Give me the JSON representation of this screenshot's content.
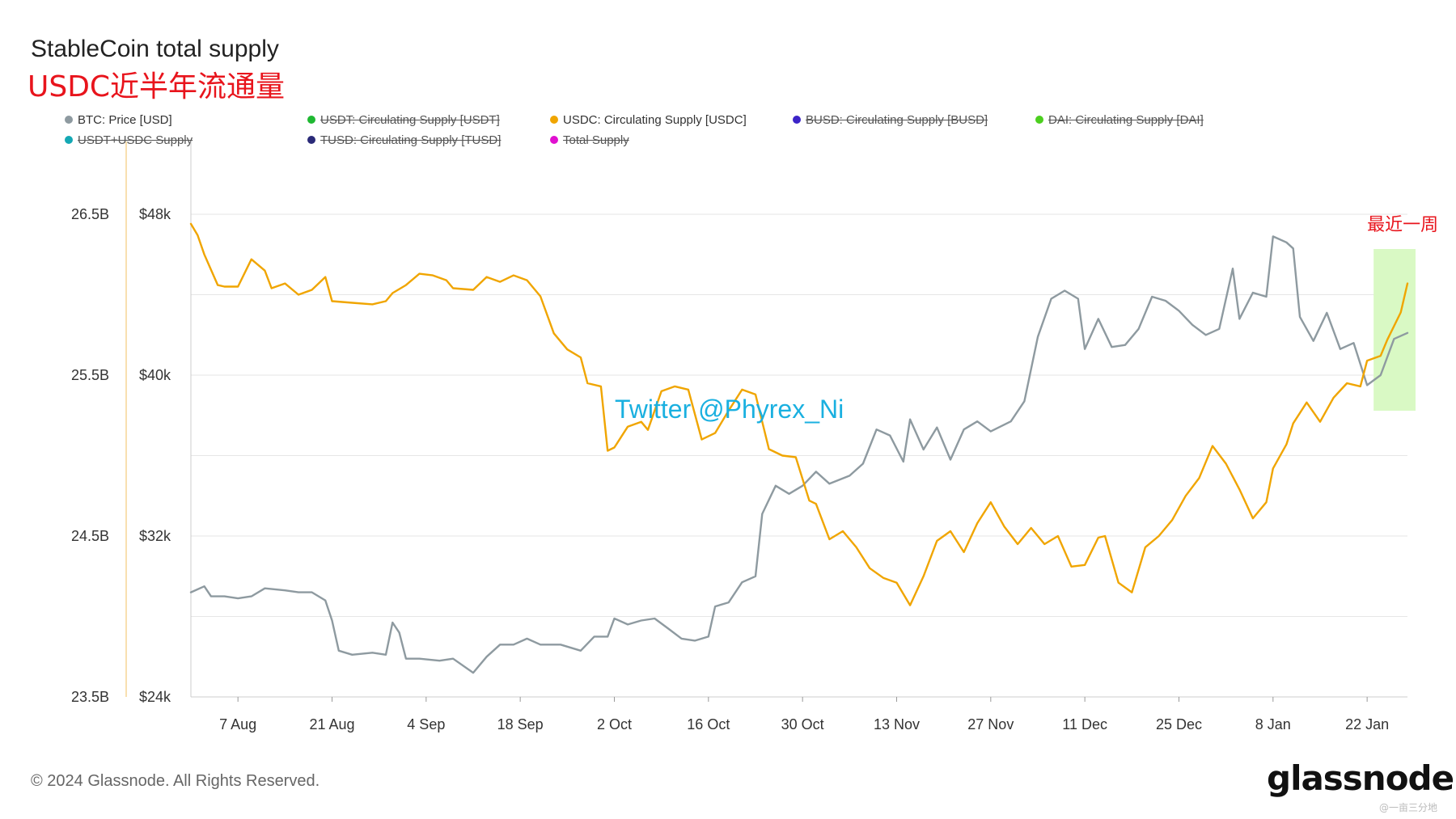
{
  "header": {
    "title": "StableCoin total supply",
    "subtitle": "USDC近半年流通量"
  },
  "legend": [
    {
      "label": "BTC: Price [USD]",
      "color": "#8e9aa0",
      "enabled": true
    },
    {
      "label": "USDT: Circulating Supply [USDT]",
      "color": "#1fb832",
      "enabled": false
    },
    {
      "label": "USDC: Circulating Supply [USDC]",
      "color": "#f0a500",
      "enabled": true
    },
    {
      "label": "BUSD: Circulating Supply [BUSD]",
      "color": "#3c24c8",
      "enabled": false
    },
    {
      "label": "DAI: Circulating Supply [DAI]",
      "color": "#4ccf1f",
      "enabled": false
    },
    {
      "label": "USDT+USDC Supply",
      "color": "#14a8b4",
      "enabled": false
    },
    {
      "label": "TUSD: Circulating Supply [TUSD]",
      "color": "#2a2a78",
      "enabled": false
    },
    {
      "label": "Total Supply",
      "color": "#e010d0",
      "enabled": false
    }
  ],
  "annotations": {
    "watermark": "Twitter @Phyrex_Ni",
    "highlight_label": "最近一周",
    "highlight_color": "#d9f9c4"
  },
  "footer": {
    "copyright": "© 2024 Glassnode. All Rights Reserved.",
    "logo": "glassnode",
    "corner_mark": "@一亩三分地"
  },
  "chart_data": {
    "type": "line",
    "x_ticks": [
      "7 Aug",
      "21 Aug",
      "4 Sep",
      "18 Sep",
      "2 Oct",
      "16 Oct",
      "30 Oct",
      "13 Nov",
      "27 Nov",
      "11 Dec",
      "25 Dec",
      "8 Jan",
      "22 Jan"
    ],
    "x_range": [
      "2023-07-31",
      "2024-01-28"
    ],
    "y_left": {
      "ticks": [
        "26.5B",
        "25.5B",
        "24.5B",
        "23.5B"
      ],
      "range": [
        23.5,
        26.5
      ],
      "unit": "B"
    },
    "y_right": {
      "ticks": [
        "$48k",
        "$40k",
        "$32k",
        "$24k"
      ],
      "range": [
        24,
        48
      ],
      "unit": "k"
    },
    "series": [
      {
        "name": "BTC: Price [USD]",
        "axis": "price",
        "color": "#8e9aa0",
        "points": [
          [
            "2023-07-31",
            29.2
          ],
          [
            "2023-08-02",
            29.5
          ],
          [
            "2023-08-03",
            29.0
          ],
          [
            "2023-08-05",
            29.0
          ],
          [
            "2023-08-07",
            28.9
          ],
          [
            "2023-08-09",
            29.0
          ],
          [
            "2023-08-11",
            29.4
          ],
          [
            "2023-08-14",
            29.3
          ],
          [
            "2023-08-16",
            29.2
          ],
          [
            "2023-08-18",
            29.2
          ],
          [
            "2023-08-20",
            28.8
          ],
          [
            "2023-08-21",
            27.8
          ],
          [
            "2023-08-22",
            26.3
          ],
          [
            "2023-08-24",
            26.1
          ],
          [
            "2023-08-27",
            26.2
          ],
          [
            "2023-08-29",
            26.1
          ],
          [
            "2023-08-30",
            27.7
          ],
          [
            "2023-08-31",
            27.2
          ],
          [
            "2023-09-01",
            25.9
          ],
          [
            "2023-09-03",
            25.9
          ],
          [
            "2023-09-06",
            25.8
          ],
          [
            "2023-09-08",
            25.9
          ],
          [
            "2023-09-11",
            25.2
          ],
          [
            "2023-09-13",
            26.0
          ],
          [
            "2023-09-15",
            26.6
          ],
          [
            "2023-09-17",
            26.6
          ],
          [
            "2023-09-19",
            26.9
          ],
          [
            "2023-09-21",
            26.6
          ],
          [
            "2023-09-24",
            26.6
          ],
          [
            "2023-09-27",
            26.3
          ],
          [
            "2023-09-29",
            27.0
          ],
          [
            "2023-10-01",
            27.0
          ],
          [
            "2023-10-02",
            27.9
          ],
          [
            "2023-10-04",
            27.6
          ],
          [
            "2023-10-06",
            27.8
          ],
          [
            "2023-10-08",
            27.9
          ],
          [
            "2023-10-10",
            27.4
          ],
          [
            "2023-10-12",
            26.9
          ],
          [
            "2023-10-14",
            26.8
          ],
          [
            "2023-10-16",
            27.0
          ],
          [
            "2023-10-17",
            28.5
          ],
          [
            "2023-10-19",
            28.7
          ],
          [
            "2023-10-21",
            29.7
          ],
          [
            "2023-10-23",
            30.0
          ],
          [
            "2023-10-24",
            33.1
          ],
          [
            "2023-10-26",
            34.5
          ],
          [
            "2023-10-28",
            34.1
          ],
          [
            "2023-10-30",
            34.5
          ],
          [
            "2023-11-01",
            35.2
          ],
          [
            "2023-11-03",
            34.6
          ],
          [
            "2023-11-06",
            35.0
          ],
          [
            "2023-11-08",
            35.6
          ],
          [
            "2023-11-10",
            37.3
          ],
          [
            "2023-11-12",
            37.0
          ],
          [
            "2023-11-14",
            35.7
          ],
          [
            "2023-11-15",
            37.8
          ],
          [
            "2023-11-17",
            36.3
          ],
          [
            "2023-11-19",
            37.4
          ],
          [
            "2023-11-21",
            35.8
          ],
          [
            "2023-11-23",
            37.3
          ],
          [
            "2023-11-25",
            37.7
          ],
          [
            "2023-11-27",
            37.2
          ],
          [
            "2023-11-30",
            37.7
          ],
          [
            "2023-12-02",
            38.7
          ],
          [
            "2023-12-04",
            41.9
          ],
          [
            "2023-12-06",
            43.8
          ],
          [
            "2023-12-08",
            44.2
          ],
          [
            "2023-12-10",
            43.8
          ],
          [
            "2023-12-11",
            41.3
          ],
          [
            "2023-12-13",
            42.8
          ],
          [
            "2023-12-15",
            41.4
          ],
          [
            "2023-12-17",
            41.5
          ],
          [
            "2023-12-19",
            42.3
          ],
          [
            "2023-12-21",
            43.9
          ],
          [
            "2023-12-23",
            43.7
          ],
          [
            "2023-12-25",
            43.2
          ],
          [
            "2023-12-27",
            42.5
          ],
          [
            "2023-12-29",
            42.0
          ],
          [
            "2023-12-31",
            42.3
          ],
          [
            "2024-01-02",
            45.3
          ],
          [
            "2024-01-03",
            42.8
          ],
          [
            "2024-01-05",
            44.1
          ],
          [
            "2024-01-07",
            43.9
          ],
          [
            "2024-01-08",
            46.9
          ],
          [
            "2024-01-10",
            46.6
          ],
          [
            "2024-01-11",
            46.3
          ],
          [
            "2024-01-12",
            42.9
          ],
          [
            "2024-01-14",
            41.7
          ],
          [
            "2024-01-16",
            43.1
          ],
          [
            "2024-01-18",
            41.3
          ],
          [
            "2024-01-20",
            41.6
          ],
          [
            "2024-01-22",
            39.5
          ],
          [
            "2024-01-24",
            40.0
          ],
          [
            "2024-01-26",
            41.8
          ],
          [
            "2024-01-28",
            42.1
          ]
        ]
      },
      {
        "name": "USDC: Circulating Supply [USDC]",
        "axis": "supply",
        "color": "#f0a500",
        "points": [
          [
            "2023-07-31",
            26.44
          ],
          [
            "2023-08-01",
            26.37
          ],
          [
            "2023-08-02",
            26.25
          ],
          [
            "2023-08-04",
            26.06
          ],
          [
            "2023-08-05",
            26.05
          ],
          [
            "2023-08-07",
            26.05
          ],
          [
            "2023-08-09",
            26.22
          ],
          [
            "2023-08-11",
            26.15
          ],
          [
            "2023-08-12",
            26.04
          ],
          [
            "2023-08-14",
            26.07
          ],
          [
            "2023-08-16",
            26.0
          ],
          [
            "2023-08-18",
            26.03
          ],
          [
            "2023-08-20",
            26.11
          ],
          [
            "2023-08-21",
            25.96
          ],
          [
            "2023-08-24",
            25.95
          ],
          [
            "2023-08-27",
            25.94
          ],
          [
            "2023-08-29",
            25.96
          ],
          [
            "2023-08-30",
            26.01
          ],
          [
            "2023-09-01",
            26.06
          ],
          [
            "2023-09-03",
            26.13
          ],
          [
            "2023-09-05",
            26.12
          ],
          [
            "2023-09-07",
            26.09
          ],
          [
            "2023-09-08",
            26.04
          ],
          [
            "2023-09-11",
            26.03
          ],
          [
            "2023-09-13",
            26.11
          ],
          [
            "2023-09-15",
            26.08
          ],
          [
            "2023-09-17",
            26.12
          ],
          [
            "2023-09-19",
            26.09
          ],
          [
            "2023-09-21",
            25.99
          ],
          [
            "2023-09-23",
            25.76
          ],
          [
            "2023-09-25",
            25.66
          ],
          [
            "2023-09-27",
            25.61
          ],
          [
            "2023-09-28",
            25.45
          ],
          [
            "2023-09-30",
            25.43
          ],
          [
            "2023-10-01",
            25.03
          ],
          [
            "2023-10-02",
            25.05
          ],
          [
            "2023-10-04",
            25.18
          ],
          [
            "2023-10-06",
            25.21
          ],
          [
            "2023-10-07",
            25.16
          ],
          [
            "2023-10-09",
            25.4
          ],
          [
            "2023-10-11",
            25.43
          ],
          [
            "2023-10-13",
            25.41
          ],
          [
            "2023-10-15",
            25.1
          ],
          [
            "2023-10-17",
            25.14
          ],
          [
            "2023-10-19",
            25.28
          ],
          [
            "2023-10-21",
            25.41
          ],
          [
            "2023-10-23",
            25.38
          ],
          [
            "2023-10-25",
            25.04
          ],
          [
            "2023-10-27",
            25.0
          ],
          [
            "2023-10-29",
            24.99
          ],
          [
            "2023-10-31",
            24.72
          ],
          [
            "2023-11-01",
            24.7
          ],
          [
            "2023-11-03",
            24.48
          ],
          [
            "2023-11-05",
            24.53
          ],
          [
            "2023-11-07",
            24.43
          ],
          [
            "2023-11-09",
            24.3
          ],
          [
            "2023-11-11",
            24.24
          ],
          [
            "2023-11-13",
            24.21
          ],
          [
            "2023-11-15",
            24.07
          ],
          [
            "2023-11-17",
            24.25
          ],
          [
            "2023-11-19",
            24.47
          ],
          [
            "2023-11-21",
            24.53
          ],
          [
            "2023-11-23",
            24.4
          ],
          [
            "2023-11-25",
            24.58
          ],
          [
            "2023-11-27",
            24.71
          ],
          [
            "2023-11-29",
            24.56
          ],
          [
            "2023-12-01",
            24.45
          ],
          [
            "2023-12-03",
            24.55
          ],
          [
            "2023-12-05",
            24.45
          ],
          [
            "2023-12-07",
            24.5
          ],
          [
            "2023-12-09",
            24.31
          ],
          [
            "2023-12-11",
            24.32
          ],
          [
            "2023-12-13",
            24.49
          ],
          [
            "2023-12-14",
            24.5
          ],
          [
            "2023-12-16",
            24.21
          ],
          [
            "2023-12-18",
            24.15
          ],
          [
            "2023-12-20",
            24.43
          ],
          [
            "2023-12-22",
            24.5
          ],
          [
            "2023-12-24",
            24.6
          ],
          [
            "2023-12-26",
            24.75
          ],
          [
            "2023-12-28",
            24.86
          ],
          [
            "2023-12-30",
            25.06
          ],
          [
            "2024-01-01",
            24.95
          ],
          [
            "2024-01-03",
            24.79
          ],
          [
            "2024-01-05",
            24.61
          ],
          [
            "2024-01-07",
            24.71
          ],
          [
            "2024-01-08",
            24.92
          ],
          [
            "2024-01-10",
            25.07
          ],
          [
            "2024-01-11",
            25.2
          ],
          [
            "2024-01-13",
            25.33
          ],
          [
            "2024-01-15",
            25.21
          ],
          [
            "2024-01-17",
            25.36
          ],
          [
            "2024-01-19",
            25.45
          ],
          [
            "2024-01-21",
            25.43
          ],
          [
            "2024-01-22",
            25.59
          ],
          [
            "2024-01-24",
            25.62
          ],
          [
            "2024-01-25",
            25.72
          ],
          [
            "2024-01-27",
            25.89
          ],
          [
            "2024-01-28",
            26.07
          ]
        ]
      }
    ],
    "highlight_range": [
      "2024-01-22",
      "2024-01-28"
    ]
  }
}
